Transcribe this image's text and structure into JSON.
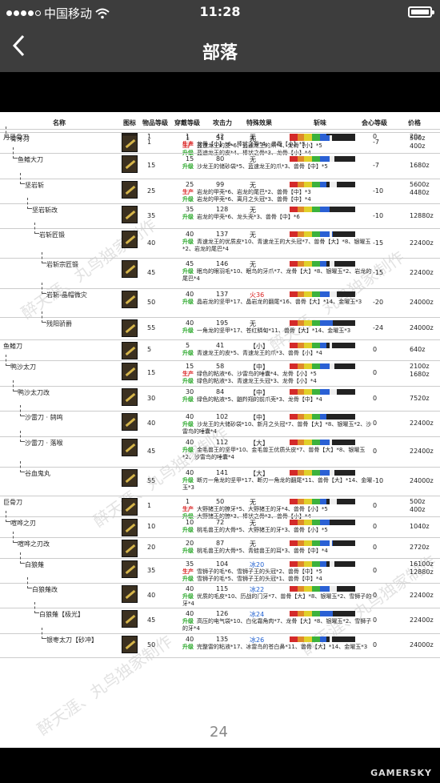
{
  "status_bar": {
    "carrier": "中国移动",
    "time": "11:28"
  },
  "nav": {
    "title": "部落"
  },
  "headers": {
    "name": "名称",
    "icon": "图标",
    "rarity": "物品等级",
    "slots": "穿戴等级",
    "attack": "攻击力",
    "special": "特殊效果",
    "sharpness": "斩味",
    "affinity": "会心等级",
    "price": "价格"
  },
  "colors": {
    "craft": "#d92020",
    "upgrade": "#23a523"
  },
  "labels": {
    "craft": "生产",
    "upgrade": "升级"
  },
  "watermark": "醉天涯、丸鸟独家制作",
  "page_number": "24",
  "footer_logo": "GAMERSKY",
  "weapons": [
    {
      "name": "月牙骨刀",
      "rarity": "1",
      "slots": "1",
      "attack": "42",
      "special": "无",
      "affinity": "0",
      "price": "20z",
      "craft": "龙骨【小】*6、棒状之骨*4、兽骨【小】*5",
      "upgrade": ""
    },
    {
      "name": "骨牙刀",
      "rarity": "1",
      "slots": "1",
      "attack": "51",
      "special": "无",
      "affinity": "-7",
      "price": "500z",
      "price2": "400z",
      "craft": "蓝速龙王的皮*6、蓝速龙王的爪*4、龙骨【小】*5",
      "upgrade": "蓝速龙王的皮*4、棒状之骨*3、龙骨【小】*4"
    },
    {
      "name": "鱼鳍大刀",
      "rarity": "15",
      "slots": "15",
      "attack": "80",
      "special": "无",
      "affinity": "-7",
      "price": "1680z",
      "craft": "",
      "upgrade": "沙龙王的储砂袋*5、蓝速龙王的爪*3、兽骨【中】*5"
    },
    {
      "name": "坚岩斩",
      "rarity": "25",
      "slots": "25",
      "attack": "99",
      "special": "无",
      "affinity": "-10",
      "price": "5600z",
      "price2": "4480z",
      "craft": "岩龙的甲壳*6、岩龙的尾巴*2、兽骨【中】*3",
      "upgrade": "岩龙的甲壳*6、离月之头冠*3、兽骨【中】*4"
    },
    {
      "name": "坚岩斩改",
      "rarity": "35",
      "slots": "35",
      "attack": "128",
      "special": "无",
      "affinity": "-10",
      "price": "12880z",
      "craft": "",
      "upgrade": "岩龙的甲壳*6、龙头壳*3、兽骨【中】*6"
    },
    {
      "name": "岩斩匠锻",
      "rarity": "40",
      "slots": "40",
      "attack": "137",
      "special": "无",
      "affinity": "-15",
      "price": "22400z",
      "craft": "",
      "upgrade": "青速龙王的优质皮*10、青速龙王的大头冠*7、兽骨【大】*8、银曜玉*2、岩龙的尾巴*4"
    },
    {
      "name": "岩斩宗匠锻",
      "rarity": "45",
      "slots": "45",
      "attack": "146",
      "special": "无",
      "affinity": "-15",
      "price": "22400z",
      "craft": "",
      "upgrade": "眠鸟的眼羽毛*10、眠鸟的牙爪*7、龙骨【大】*8、银曜玉*2、岩龙的尾巴*4"
    },
    {
      "name": "岩斩-晶帽微灾",
      "rarity": "50",
      "slots": "40",
      "attack": "137",
      "special": "火36",
      "affinity": "-20",
      "price": "24000z",
      "craft": "",
      "upgrade": "晶岩龙的坚甲*17、晶岩龙的翻尾*16、兽骨【大】*14、金曜玉*3"
    },
    {
      "name": "残阳骄爵",
      "rarity": "55",
      "slots": "40",
      "attack": "195",
      "special": "无",
      "affinity": "-24",
      "price": "24000z",
      "craft": "",
      "upgrade": "一角龙的坚甲*17、苍红鳞甸*11、兽骨【大】*14、金曜玉*3"
    },
    {
      "name": "鱼鳍刀",
      "rarity": "5",
      "slots": "5",
      "attack": "41",
      "special": "【小】",
      "affinity": "0",
      "price": "640z",
      "craft": "",
      "upgrade": "青速龙王的皮*5、青速龙王的爪*3、兽骨【小】*4"
    },
    {
      "name": "鸭沙太刀",
      "rarity": "15",
      "slots": "15",
      "attack": "58",
      "special": "【中】",
      "affinity": "0",
      "price": "2100z",
      "price2": "1680z",
      "craft": "绿色的粘液*6、沙雷鸟的唾囊*4、龙骨【小】*5",
      "upgrade": "绿色的粘液*3、青速龙王头冠*3、龙骨【小】*4"
    },
    {
      "name": "鸭沙太刀改",
      "rarity": "30",
      "slots": "30",
      "attack": "84",
      "special": "【中】",
      "affinity": "0",
      "price": "7520z",
      "craft": "",
      "upgrade": "绿色的粘液*5、鼬羚翔的前爪壳*3、龙骨【中】*4"
    },
    {
      "name": "沙雷刀 · 鸫鸣",
      "rarity": "40",
      "slots": "40",
      "attack": "102",
      "special": "【中】",
      "affinity": "0",
      "price": "22400z",
      "craft": "",
      "upgrade": "沙龙王的大储砂袋*10、新月之头冠*7、兽骨【大】*8、银曜玉*2、沙雷鸟的唾囊*4"
    },
    {
      "name": "沙雷刀 · 落喉",
      "rarity": "45",
      "slots": "40",
      "attack": "112",
      "special": "【大】",
      "affinity": "0",
      "price": "22400z",
      "craft": "",
      "upgrade": "金毛兽王的坚甲*10、金毛兽王优质头皮*7、兽骨【大】*8、银曜玉*2、沙雷鸟的唾囊*4"
    },
    {
      "name": "谷血鬼丸",
      "rarity": "55",
      "slots": "40",
      "attack": "141",
      "special": "【大】",
      "affinity": "-10",
      "price": "24000z",
      "craft": "",
      "upgrade": "断刃一角龙的坚甲*17、断刃一角龙的翻尾*11、兽骨【大】*14、金曜玉*3"
    },
    {
      "name": "巨骨刀",
      "rarity": "1",
      "slots": "1",
      "attack": "50",
      "special": "无",
      "affinity": "0",
      "price": "500z",
      "price2": "400z",
      "craft": "大野猪王的獠牙*5、大野猪王的牙*4、兽骨【小】*5",
      "upgrade": "大野猪王的獠*3、棒状之骨*3、兽骨【小】*4"
    },
    {
      "name": "喧哗之刃",
      "rarity": "10",
      "slots": "10",
      "attack": "72",
      "special": "无",
      "affinity": "0",
      "price": "1040z",
      "craft": "",
      "upgrade": "桃毛兽王的大骨*5、大野猪王的牙*3、兽骨【小】*5"
    },
    {
      "name": "喧哗之刃改",
      "rarity": "20",
      "slots": "20",
      "attack": "87",
      "special": "无",
      "affinity": "0",
      "price": "2720z",
      "craft": "",
      "upgrade": "桃毛兽王的大骨*5、青蛙兽王的耳*3、兽骨【中】*4"
    },
    {
      "name": "白狼薙",
      "rarity": "35",
      "slots": "35",
      "attack": "104",
      "special": "冰20",
      "affinity": "0",
      "price": "16100z",
      "price2": "12880z",
      "craft": "雪狮子的毛*6、雪狮子王的头冠*2、兽骨【中】*5",
      "upgrade": "雪狮子的毛*5、雪狮子王的头冠*1、兽骨【中】*4"
    },
    {
      "name": "白狼薙改",
      "rarity": "40",
      "slots": "40",
      "attack": "115",
      "special": "冰22",
      "affinity": "0",
      "price": "22400z",
      "craft": "",
      "upgrade": "优质的毛皮*10、历战的门牙*7、兽骨【大】*8、银曜玉*2、雪狮子的牙*4"
    },
    {
      "name": "白狼薙【极光】",
      "rarity": "45",
      "slots": "40",
      "attack": "126",
      "special": "冰24",
      "affinity": "0",
      "price": "22400z",
      "craft": "",
      "upgrade": "高压的电气袋*10、白化霜角肉*7、龙骨【大】*8、银曜玉*2、雪狮子的牙*4"
    },
    {
      "name": "银枣太刀【砂冲】",
      "rarity": "50",
      "slots": "40",
      "attack": "135",
      "special": "冰26",
      "affinity": "0",
      "price": "24000z",
      "craft": "",
      "upgrade": "完整雷的粘液*17、冰雷鸟的苍白鼻*11、兽骨【大】*14、金曜玉*3"
    }
  ]
}
